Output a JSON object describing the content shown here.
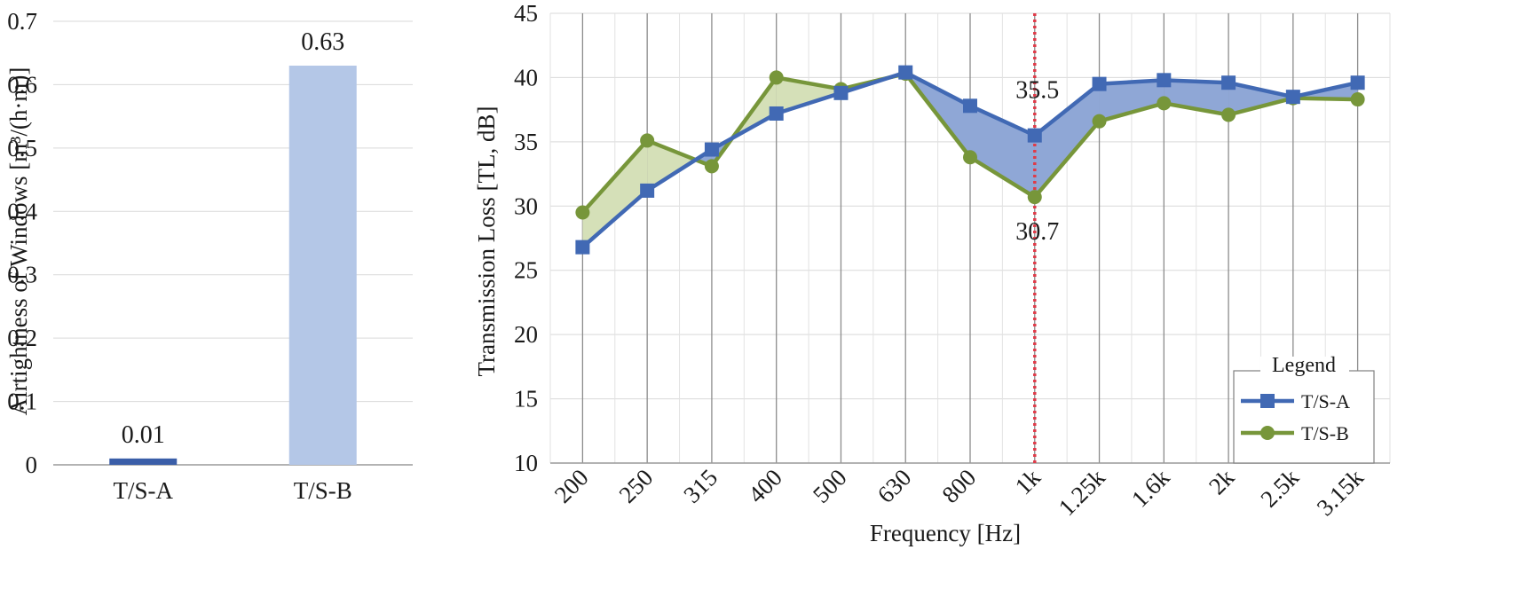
{
  "chart_data": [
    {
      "type": "bar",
      "categories": [
        "T/S-A",
        "T/S-B"
      ],
      "values": [
        0.01,
        0.63
      ],
      "value_labels": [
        "0.01",
        "0.63"
      ],
      "colors": [
        "#3a5ea8",
        "#b4c7e7"
      ],
      "ylabel": "Airtightness of Windows [m³/(h·m)]",
      "ylim": [
        0,
        0.7
      ],
      "yticks": [
        0,
        0.1,
        0.2,
        0.3,
        0.4,
        0.5,
        0.6,
        0.7
      ],
      "ytick_labels": [
        "0",
        "0.1",
        "0.2",
        "0.3",
        "0.4",
        "0.5",
        "0.6",
        "0.7"
      ],
      "grid": "horizontal"
    },
    {
      "type": "line",
      "categories": [
        "200",
        "250",
        "315",
        "400",
        "500",
        "630",
        "800",
        "1k",
        "1.25k",
        "1.6k",
        "2k",
        "2.5k",
        "3.15k"
      ],
      "series": [
        {
          "name": "T/S-A",
          "values": [
            26.8,
            31.2,
            34.4,
            37.2,
            38.8,
            40.4,
            37.8,
            35.5,
            39.5,
            39.8,
            39.6,
            38.5,
            39.6
          ],
          "color": "#4169b4",
          "marker": "square"
        },
        {
          "name": "T/S-B",
          "values": [
            29.5,
            35.1,
            33.1,
            40.0,
            39.1,
            40.3,
            33.8,
            30.7,
            36.6,
            38.0,
            37.1,
            38.4,
            38.3
          ],
          "color": "#77963a",
          "marker": "circle"
        }
      ],
      "fill_colors": {
        "a_above": "#8fa7d6",
        "b_above": "#d5e0b8"
      },
      "xlabel": "Frequency [Hz]",
      "ylabel": "Transmission Loss [TL, dB]",
      "ylim": [
        10,
        45
      ],
      "yticks": [
        10,
        15,
        20,
        25,
        30,
        35,
        40,
        45
      ],
      "ytick_labels": [
        "10",
        "15",
        "20",
        "25",
        "30",
        "35",
        "40",
        "45"
      ],
      "grid": "both",
      "reference_line": {
        "category": "1k",
        "color": "#e03a48",
        "style": "dotted"
      },
      "annotations": [
        {
          "category": "1k",
          "text": "35.5",
          "position": "above"
        },
        {
          "category": "1k",
          "text": "30.7",
          "position": "below"
        }
      ],
      "legend": {
        "title": "Legend",
        "placement": "bottom-right"
      }
    }
  ]
}
